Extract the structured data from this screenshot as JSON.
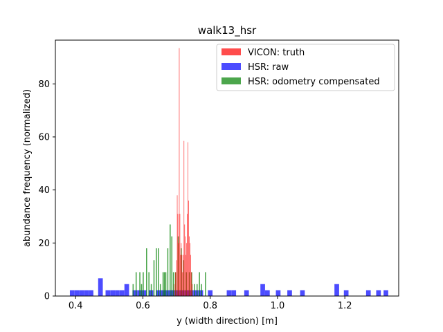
{
  "chart_data": {
    "type": "bar",
    "subtype": "histogram",
    "title": "walk13_hsr",
    "xlabel": "y (width direction) [m]",
    "ylabel": "abundance frequency (normalized)",
    "xlim": [
      0.34,
      1.36
    ],
    "ylim": [
      0,
      96.5
    ],
    "xticks": [
      0.4,
      0.6,
      0.8,
      1.0,
      1.2
    ],
    "xtick_labels": [
      "0.4",
      "0.6",
      "0.8",
      "1.0",
      "1.2"
    ],
    "yticks": [
      0,
      20,
      40,
      60,
      80
    ],
    "ytick_labels": [
      "0",
      "20",
      "40",
      "60",
      "80"
    ],
    "grid": false,
    "legend_position": "top-right",
    "series": [
      {
        "name": "HSR: raw",
        "color": "#0000ff",
        "alpha": 0.7,
        "bin_width": 0.0138,
        "bins": [
          [
            0.39,
            2.2
          ],
          [
            0.404,
            2.2
          ],
          [
            0.418,
            2.2
          ],
          [
            0.432,
            2.2
          ],
          [
            0.446,
            2.2
          ],
          [
            0.474,
            6.7
          ],
          [
            0.496,
            2.2
          ],
          [
            0.51,
            2.2
          ],
          [
            0.524,
            2.2
          ],
          [
            0.538,
            2.2
          ],
          [
            0.552,
            4.5
          ],
          [
            0.576,
            2.2
          ],
          [
            0.59,
            2.2
          ],
          [
            0.604,
            2.2
          ],
          [
            0.624,
            2.2
          ],
          [
            0.646,
            2.2
          ],
          [
            0.66,
            2.2
          ],
          [
            0.674,
            2.2
          ],
          [
            0.688,
            2.2
          ],
          [
            0.702,
            2.2
          ],
          [
            0.716,
            2.2
          ],
          [
            0.73,
            2.2
          ],
          [
            0.744,
            2.2
          ],
          [
            0.758,
            2.2
          ],
          [
            0.772,
            2.2
          ],
          [
            0.8,
            2.2
          ],
          [
            0.856,
            2.2
          ],
          [
            0.87,
            2.2
          ],
          [
            0.908,
            2.2
          ],
          [
            0.956,
            4.5
          ],
          [
            0.97,
            2.2
          ],
          [
            1.002,
            2.2
          ],
          [
            1.036,
            2.2
          ],
          [
            1.074,
            2.2
          ],
          [
            1.176,
            4.5
          ],
          [
            1.204,
            2.2
          ],
          [
            1.27,
            2.2
          ],
          [
            1.3,
            2.2
          ],
          [
            1.322,
            2.2
          ]
        ]
      },
      {
        "name": "HSR: odometry compensated",
        "color": "#008000",
        "alpha": 0.7,
        "bin_width": 0.0032,
        "bins": [
          [
            0.571,
            4.5
          ],
          [
            0.58,
            9.0
          ],
          [
            0.591,
            9.0
          ],
          [
            0.596,
            4.5
          ],
          [
            0.601,
            9.0
          ],
          [
            0.611,
            18.0
          ],
          [
            0.618,
            9.0
          ],
          [
            0.625,
            4.5
          ],
          [
            0.633,
            13.5
          ],
          [
            0.64,
            18.0
          ],
          [
            0.646,
            18.0
          ],
          [
            0.652,
            4.5
          ],
          [
            0.66,
            9.0
          ],
          [
            0.664,
            9.0
          ],
          [
            0.668,
            9.0
          ],
          [
            0.674,
            18.0
          ],
          [
            0.681,
            27.0
          ],
          [
            0.686,
            22.5
          ],
          [
            0.691,
            9.0
          ],
          [
            0.697,
            9.0
          ],
          [
            0.705,
            22.5
          ],
          [
            0.714,
            18.0
          ],
          [
            0.721,
            13.5
          ],
          [
            0.729,
            9.0
          ],
          [
            0.738,
            9.0
          ],
          [
            0.745,
            9.0
          ],
          [
            0.753,
            4.5
          ],
          [
            0.761,
            4.5
          ],
          [
            0.768,
            9.0
          ],
          [
            0.774,
            4.5
          ],
          [
            0.786,
            9.0
          ]
        ]
      },
      {
        "name": "VICON: truth",
        "color": "#ff0000",
        "alpha": 0.7,
        "bin_width": 0.0016,
        "bins": [
          [
            0.693,
            4.5
          ],
          [
            0.697,
            9.0
          ],
          [
            0.7,
            13.5
          ],
          [
            0.702,
            38.0
          ],
          [
            0.704,
            31.0
          ],
          [
            0.706,
            20.0
          ],
          [
            0.708,
            93.5
          ],
          [
            0.71,
            31.0
          ],
          [
            0.712,
            15.5
          ],
          [
            0.714,
            20.0
          ],
          [
            0.716,
            15.5
          ],
          [
            0.718,
            9.0
          ],
          [
            0.72,
            15.5
          ],
          [
            0.722,
            58.5
          ],
          [
            0.724,
            27.0
          ],
          [
            0.726,
            22.5
          ],
          [
            0.728,
            15.5
          ],
          [
            0.73,
            20.0
          ],
          [
            0.732,
            31.0
          ],
          [
            0.734,
            58.0
          ],
          [
            0.736,
            36.0
          ],
          [
            0.738,
            22.5
          ],
          [
            0.74,
            20.0
          ],
          [
            0.742,
            15.5
          ],
          [
            0.744,
            9.0
          ],
          [
            0.747,
            4.5
          ]
        ]
      }
    ]
  }
}
